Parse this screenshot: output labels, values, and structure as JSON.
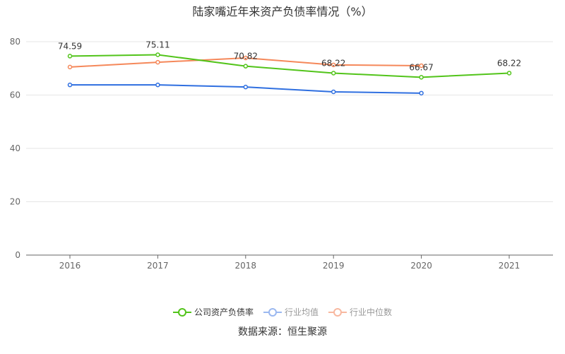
{
  "chart_data": {
    "type": "line",
    "title": "陆家嘴近年来资产负债率情况（%）",
    "categories": [
      "2016",
      "2017",
      "2018",
      "2019",
      "2020",
      "2021"
    ],
    "ylim": [
      0,
      80
    ],
    "yticks": [
      0,
      20,
      40,
      60,
      80
    ],
    "grid": true,
    "legend_position": "bottom",
    "series": [
      {
        "name": "公司资产负债率",
        "color": "#52c41a",
        "values": [
          74.59,
          75.11,
          70.82,
          68.22,
          66.67,
          68.22
        ],
        "labels": [
          "74.59",
          "75.11",
          "70.82",
          "68.22",
          "66.67",
          "68.22"
        ]
      },
      {
        "name": "行业均值",
        "color": "#2f6fe0",
        "legend_color": "#9bb8f0",
        "values": [
          63.8,
          63.8,
          63.0,
          61.2,
          60.7,
          null
        ]
      },
      {
        "name": "行业中位数",
        "color": "#f5885a",
        "legend_color": "#f8b8a0",
        "values": [
          70.5,
          72.3,
          73.9,
          71.3,
          71.0,
          null
        ]
      }
    ]
  },
  "source": "数据来源：恒生聚源"
}
